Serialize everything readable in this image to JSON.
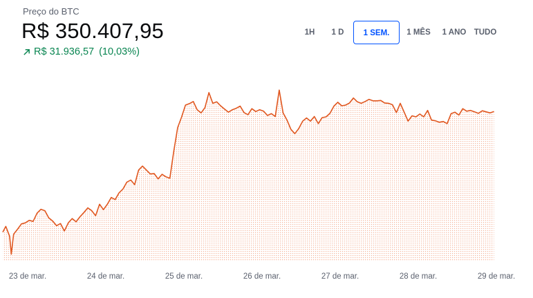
{
  "header": {
    "label": "Preço do BTC",
    "price": "R$ 350.407,95",
    "change_amount": "R$ 31.936,57",
    "change_pct": "(10,03%)",
    "change_direction": "up",
    "change_color": "#098551"
  },
  "ranges": {
    "items": [
      "1H",
      "1 D",
      "1 SEM.",
      "1 MÊS",
      "1 ANO",
      "TUDO"
    ],
    "selected": "1 SEM.",
    "accent": "#0052ff"
  },
  "chart_data": {
    "type": "area",
    "line_color": "#e0561e",
    "fill_color": "#fbd6c4",
    "grid": false,
    "xlabel": "",
    "ylabel": "",
    "x_ticks": [
      "23 de mar.",
      "24 de mar.",
      "25 de mar.",
      "26 de mar.",
      "27 de mar.",
      "28 de mar.",
      "29 de mar."
    ],
    "x_range": [
      0,
      6.35
    ],
    "ylim": [
      311000,
      361000
    ],
    "x": [
      0.0,
      0.05,
      0.1,
      0.12,
      0.15,
      0.2,
      0.25,
      0.3,
      0.35,
      0.4,
      0.45,
      0.5,
      0.55,
      0.6,
      0.65,
      0.7,
      0.75,
      0.8,
      0.85,
      0.9,
      0.95,
      1.0,
      1.05,
      1.1,
      1.15,
      1.2,
      1.25,
      1.3,
      1.35,
      1.4,
      1.45,
      1.5,
      1.55,
      1.6,
      1.65,
      1.7,
      1.75,
      1.8,
      1.85,
      1.9,
      1.95,
      2.0,
      2.05,
      2.1,
      2.15,
      2.2,
      2.25,
      2.3,
      2.35,
      2.4,
      2.45,
      2.5,
      2.55,
      2.6,
      2.65,
      2.7,
      2.75,
      2.8,
      2.85,
      2.9,
      2.95,
      3.0,
      3.05,
      3.1,
      3.15,
      3.2,
      3.25,
      3.3,
      3.35,
      3.4,
      3.45,
      3.5,
      3.55,
      3.6,
      3.65,
      3.7,
      3.75,
      3.8,
      3.85,
      3.9,
      3.95,
      4.0,
      4.05,
      4.1,
      4.15,
      4.2,
      4.25,
      4.3,
      4.35,
      4.4,
      4.45,
      4.5,
      4.55,
      4.6,
      4.65,
      4.7,
      4.75,
      4.8,
      4.85,
      4.9,
      4.95,
      5.0,
      5.05,
      5.1,
      5.15,
      5.2,
      5.25,
      5.3,
      5.35,
      5.4,
      5.45,
      5.5,
      5.55,
      5.6,
      5.65,
      5.7,
      5.75,
      5.8,
      5.85,
      5.9,
      5.95,
      6.0,
      6.05,
      6.1,
      6.15,
      6.2,
      6.25,
      6.3
    ],
    "y": [
      319200,
      320800,
      318000,
      313000,
      318600,
      320000,
      321500,
      321800,
      322500,
      322200,
      324500,
      325600,
      325200,
      323200,
      322300,
      321000,
      321600,
      319500,
      321800,
      323000,
      322100,
      323500,
      324700,
      326000,
      325200,
      323800,
      327000,
      325500,
      327000,
      328900,
      328300,
      330200,
      331300,
      333200,
      333800,
      332500,
      336600,
      337700,
      336600,
      335500,
      335600,
      334100,
      335400,
      334700,
      334300,
      341800,
      348500,
      351400,
      354800,
      355200,
      355800,
      353500,
      352600,
      354100,
      358300,
      355300,
      355700,
      354600,
      353700,
      352800,
      353500,
      353900,
      354500,
      352700,
      352100,
      353800,
      353000,
      353500,
      353100,
      351900,
      352400,
      351600,
      359000,
      352600,
      350600,
      348000,
      346800,
      348200,
      350300,
      351200,
      350300,
      351600,
      349600,
      351300,
      351500,
      352500,
      354500,
      355600,
      354600,
      354800,
      355400,
      356800,
      355700,
      355300,
      355800,
      356400,
      356000,
      356000,
      356100,
      355400,
      355300,
      354900,
      352700,
      355300,
      352800,
      350300,
      351800,
      351500,
      352300,
      351500,
      353300,
      350600,
      350400,
      350000,
      350200,
      349600,
      352400,
      352800,
      352000,
      353800,
      353100,
      353300,
      352900,
      352500,
      353200,
      352900,
      352600,
      353000
    ]
  }
}
